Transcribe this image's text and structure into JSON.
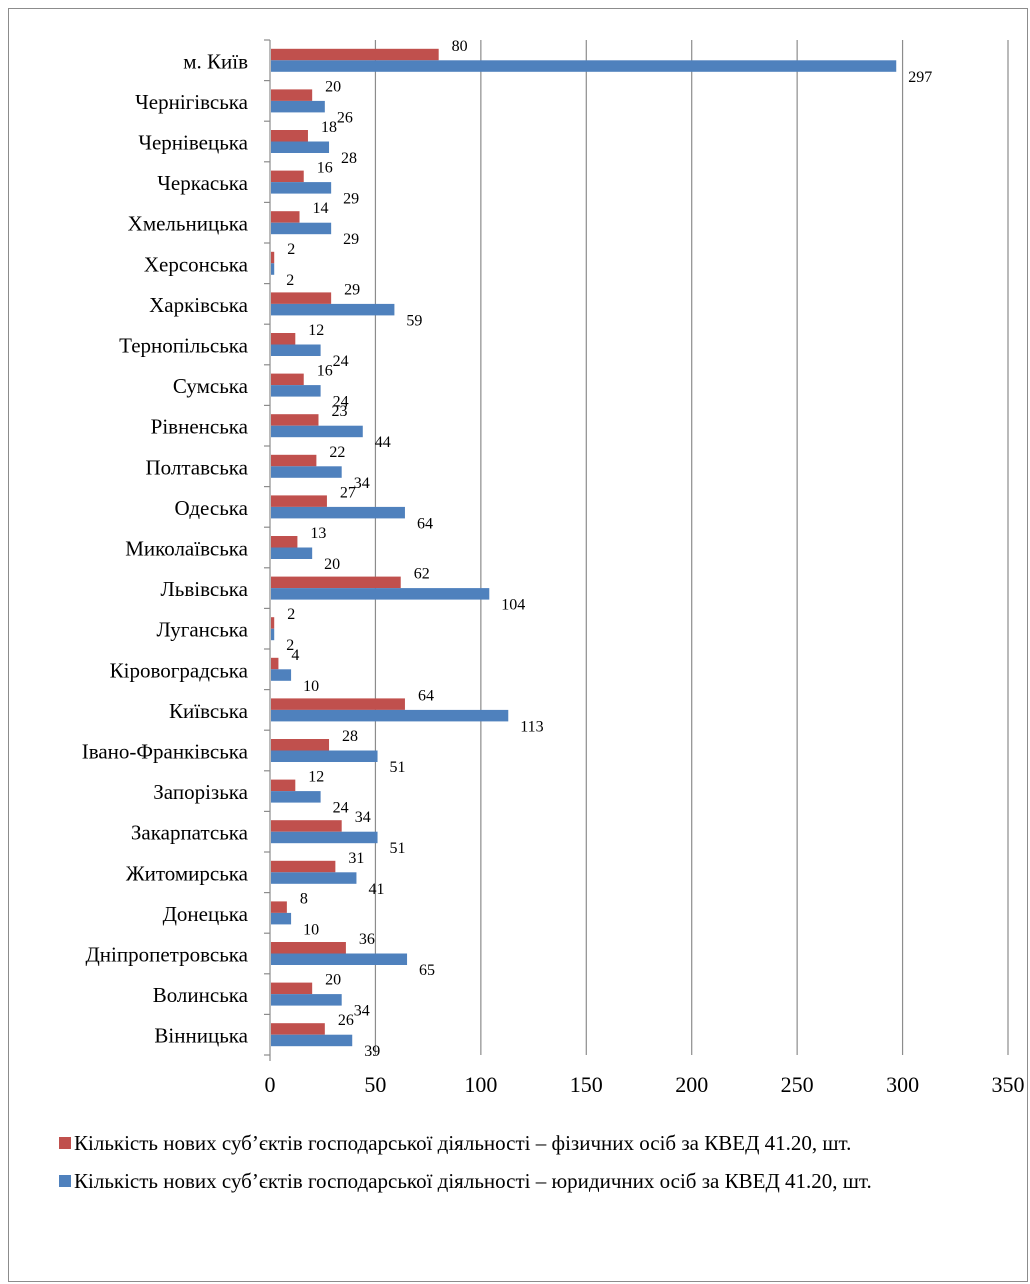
{
  "chart_data": {
    "type": "bar",
    "orientation": "horizontal",
    "categories": [
      "м. Київ",
      "Чернігівська",
      "Чернівецька",
      "Черкаська",
      "Хмельницька",
      "Херсонська",
      "Харківська",
      "Тернопільська",
      "Сумська",
      "Рівненська",
      "Полтавська",
      "Одеська",
      "Миколаївська",
      "Львівська",
      "Луганська",
      "Кіровоградська",
      "Київська",
      "Івано-Франківська",
      "Запорізька",
      "Закарпатська",
      "Житомирська",
      "Донецька",
      "Дніпропетровська",
      "Волинська",
      "Вінницька"
    ],
    "series": [
      {
        "name": "Кількість нових суб’єктів господарської діяльності – фізичних осіб за КВЕД 41.20, шт.",
        "color": "#c0504d",
        "values": [
          80,
          20,
          18,
          16,
          14,
          2,
          29,
          12,
          16,
          23,
          22,
          27,
          13,
          62,
          2,
          4,
          64,
          28,
          12,
          34,
          31,
          8,
          36,
          20,
          26
        ]
      },
      {
        "name": "Кількість нових суб’єктів господарської діяльності – юридичних осіб за КВЕД 41.20, шт.",
        "color": "#4f81bd",
        "values": [
          297,
          26,
          28,
          29,
          29,
          2,
          59,
          24,
          24,
          44,
          34,
          64,
          20,
          104,
          2,
          10,
          113,
          51,
          24,
          51,
          41,
          10,
          65,
          34,
          39
        ]
      }
    ],
    "xlim": [
      0,
      350
    ],
    "x_ticks": [
      "0",
      "50",
      "100",
      "150",
      "200",
      "250",
      "300",
      "350"
    ],
    "grid": "vertical",
    "legend_position": "bottom"
  }
}
